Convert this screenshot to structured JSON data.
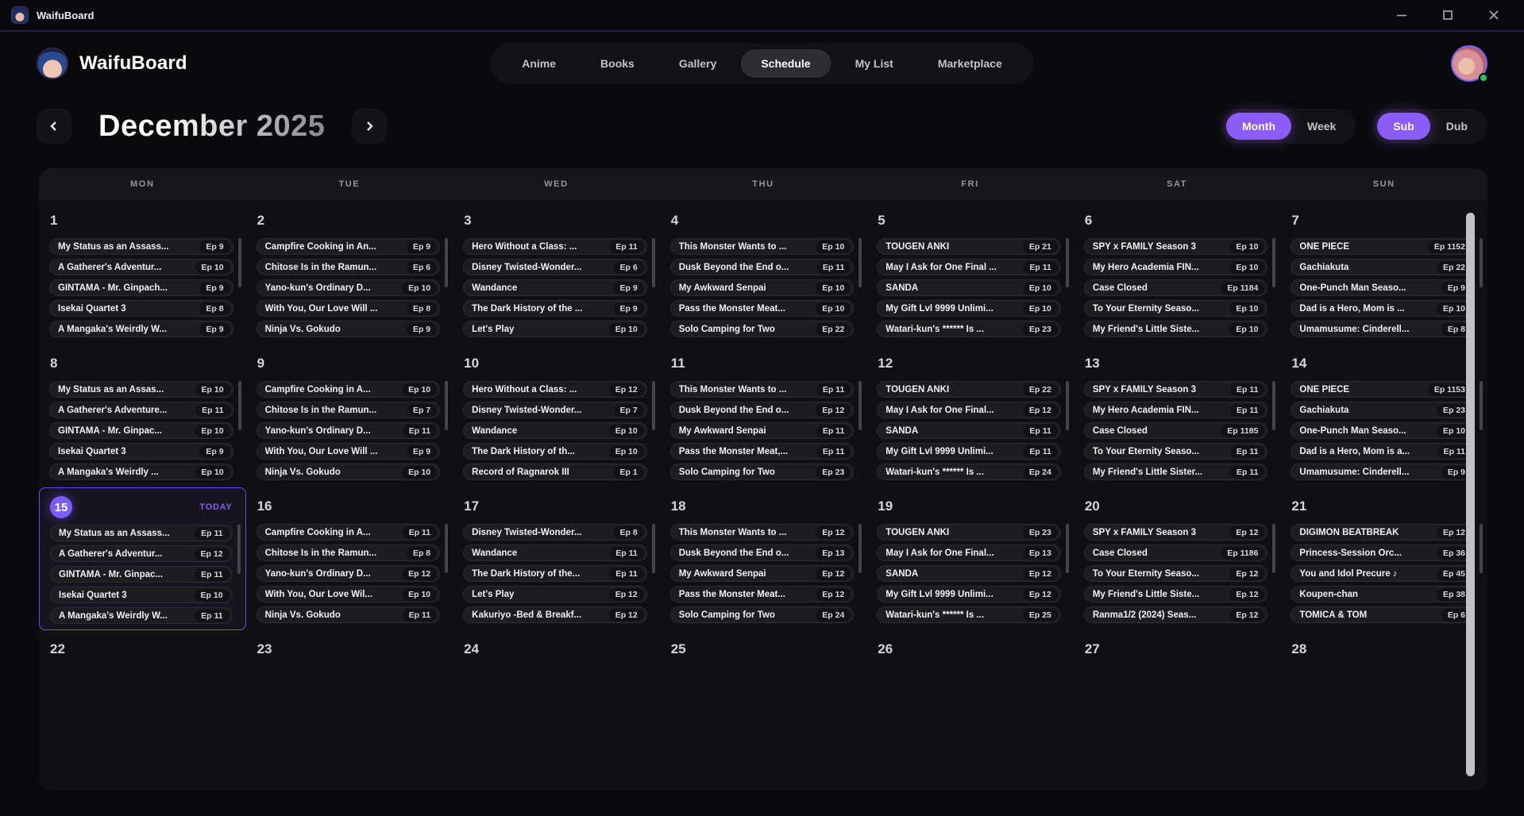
{
  "window": {
    "title": "WaifuBoard",
    "controls": [
      {
        "name": "minimize"
      },
      {
        "name": "maximize"
      },
      {
        "name": "close"
      }
    ]
  },
  "header": {
    "brand": "WaifuBoard",
    "tabs": [
      {
        "label": "Anime",
        "active": false
      },
      {
        "label": "Books",
        "active": false
      },
      {
        "label": "Gallery",
        "active": false
      },
      {
        "label": "Schedule",
        "active": true
      },
      {
        "label": "My List",
        "active": false
      },
      {
        "label": "Marketplace",
        "active": false
      }
    ],
    "avatar_status": "online"
  },
  "toolbar": {
    "month_title": "December 2025",
    "view_toggle": {
      "options": [
        "Month",
        "Week"
      ],
      "active": "Month"
    },
    "audio_toggle": {
      "options": [
        "Sub",
        "Dub"
      ],
      "active": "Sub"
    }
  },
  "colors": {
    "accent": "#8b5cf6",
    "today_badge": "#7c5cfa",
    "status_green": "#22c55e"
  },
  "calendar": {
    "day_headers": [
      "MON",
      "TUE",
      "WED",
      "THU",
      "FRI",
      "SAT",
      "SUN"
    ],
    "today_label": "TODAY",
    "weeks": [
      {
        "days": [
          {
            "date": 1,
            "entries": [
              [
                "My Status as an Assass...",
                "Ep 9"
              ],
              [
                "A Gatherer's Adventur...",
                "Ep 10"
              ],
              [
                "GINTAMA - Mr. Ginpach...",
                "Ep 9"
              ],
              [
                "Isekai Quartet 3",
                "Ep 8"
              ],
              [
                "A Mangaka's Weirdly W...",
                "Ep 9"
              ]
            ]
          },
          {
            "date": 2,
            "entries": [
              [
                "Campfire Cooking in An...",
                "Ep 9"
              ],
              [
                "Chitose Is in the Ramun...",
                "Ep 6"
              ],
              [
                "Yano-kun's Ordinary D...",
                "Ep 10"
              ],
              [
                "With You, Our Love Will ...",
                "Ep 8"
              ],
              [
                "Ninja Vs. Gokudo",
                "Ep 9"
              ]
            ]
          },
          {
            "date": 3,
            "entries": [
              [
                "Hero Without a Class: ...",
                "Ep 11"
              ],
              [
                "Disney Twisted-Wonder...",
                "Ep 6"
              ],
              [
                "Wandance",
                "Ep 9"
              ],
              [
                "The Dark History of the ...",
                "Ep 9"
              ],
              [
                "Let's Play",
                "Ep 10"
              ]
            ]
          },
          {
            "date": 4,
            "entries": [
              [
                "This Monster Wants to ...",
                "Ep 10"
              ],
              [
                "Dusk Beyond the End o...",
                "Ep 11"
              ],
              [
                "My Awkward Senpai",
                "Ep 10"
              ],
              [
                "Pass the Monster Meat...",
                "Ep 10"
              ],
              [
                "Solo Camping for Two",
                "Ep 22"
              ]
            ]
          },
          {
            "date": 5,
            "entries": [
              [
                "TOUGEN ANKI",
                "Ep 21"
              ],
              [
                "May I Ask for One Final ...",
                "Ep 11"
              ],
              [
                "SANDA",
                "Ep 10"
              ],
              [
                "My Gift Lvl 9999 Unlimi...",
                "Ep 10"
              ],
              [
                "Watari-kun's ****** Is ...",
                "Ep 23"
              ]
            ]
          },
          {
            "date": 6,
            "entries": [
              [
                "SPY x FAMILY Season 3",
                "Ep 10"
              ],
              [
                "My Hero Academia FIN...",
                "Ep 10"
              ],
              [
                "Case Closed",
                "Ep 1184"
              ],
              [
                "To Your Eternity Seaso...",
                "Ep 10"
              ],
              [
                "My Friend's Little Siste...",
                "Ep 10"
              ]
            ]
          },
          {
            "date": 7,
            "entries": [
              [
                "ONE PIECE",
                "Ep 1152"
              ],
              [
                "Gachiakuta",
                "Ep 22"
              ],
              [
                "One-Punch Man Seaso...",
                "Ep 9"
              ],
              [
                "Dad is a Hero, Mom is ...",
                "Ep 10"
              ],
              [
                "Umamusume: Cinderell...",
                "Ep 8"
              ]
            ]
          }
        ]
      },
      {
        "days": [
          {
            "date": 8,
            "entries": [
              [
                "My Status as an Assas...",
                "Ep 10"
              ],
              [
                "A Gatherer's Adventure...",
                "Ep 11"
              ],
              [
                "GINTAMA - Mr. Ginpac...",
                "Ep 10"
              ],
              [
                "Isekai Quartet 3",
                "Ep 9"
              ],
              [
                "A Mangaka's Weirdly ...",
                "Ep 10"
              ]
            ]
          },
          {
            "date": 9,
            "entries": [
              [
                "Campfire Cooking in A...",
                "Ep 10"
              ],
              [
                "Chitose Is in the Ramun...",
                "Ep 7"
              ],
              [
                "Yano-kun's Ordinary D...",
                "Ep 11"
              ],
              [
                "With You, Our Love Will ...",
                "Ep 9"
              ],
              [
                "Ninja Vs. Gokudo",
                "Ep 10"
              ]
            ]
          },
          {
            "date": 10,
            "entries": [
              [
                "Hero Without a Class: ...",
                "Ep 12"
              ],
              [
                "Disney Twisted-Wonder...",
                "Ep 7"
              ],
              [
                "Wandance",
                "Ep 10"
              ],
              [
                "The Dark History of th...",
                "Ep 10"
              ],
              [
                "Record of Ragnarok III",
                "Ep 1"
              ]
            ]
          },
          {
            "date": 11,
            "entries": [
              [
                "This Monster Wants to ...",
                "Ep 11"
              ],
              [
                "Dusk Beyond the End o...",
                "Ep 12"
              ],
              [
                "My Awkward Senpai",
                "Ep 11"
              ],
              [
                "Pass the Monster Meat,...",
                "Ep 11"
              ],
              [
                "Solo Camping for Two",
                "Ep 23"
              ]
            ]
          },
          {
            "date": 12,
            "entries": [
              [
                "TOUGEN ANKI",
                "Ep 22"
              ],
              [
                "May I Ask for One Final...",
                "Ep 12"
              ],
              [
                "SANDA",
                "Ep 11"
              ],
              [
                "My Gift Lvl 9999 Unlimi...",
                "Ep 11"
              ],
              [
                "Watari-kun's ****** Is ...",
                "Ep 24"
              ]
            ]
          },
          {
            "date": 13,
            "entries": [
              [
                "SPY x FAMILY Season 3",
                "Ep 11"
              ],
              [
                "My Hero Academia FIN...",
                "Ep 11"
              ],
              [
                "Case Closed",
                "Ep 1185"
              ],
              [
                "To Your Eternity Seaso...",
                "Ep 11"
              ],
              [
                "My Friend's Little Sister...",
                "Ep 11"
              ]
            ]
          },
          {
            "date": 14,
            "entries": [
              [
                "ONE PIECE",
                "Ep 1153"
              ],
              [
                "Gachiakuta",
                "Ep 23"
              ],
              [
                "One-Punch Man Seaso...",
                "Ep 10"
              ],
              [
                "Dad is a Hero, Mom is a...",
                "Ep 11"
              ],
              [
                "Umamusume: Cinderell...",
                "Ep 9"
              ]
            ]
          }
        ]
      },
      {
        "days": [
          {
            "date": 15,
            "today": true,
            "entries": [
              [
                "My Status as an Assass...",
                "Ep 11"
              ],
              [
                "A Gatherer's Adventur...",
                "Ep 12"
              ],
              [
                "GINTAMA - Mr. Ginpac...",
                "Ep 11"
              ],
              [
                "Isekai Quartet 3",
                "Ep 10"
              ],
              [
                "A Mangaka's Weirdly W...",
                "Ep 11"
              ]
            ]
          },
          {
            "date": 16,
            "entries": [
              [
                "Campfire Cooking in A...",
                "Ep 11"
              ],
              [
                "Chitose Is in the Ramun...",
                "Ep 8"
              ],
              [
                "Yano-kun's Ordinary D...",
                "Ep 12"
              ],
              [
                "With You, Our Love Wil...",
                "Ep 10"
              ],
              [
                "Ninja Vs. Gokudo",
                "Ep 11"
              ]
            ]
          },
          {
            "date": 17,
            "entries": [
              [
                "Disney Twisted-Wonder...",
                "Ep 8"
              ],
              [
                "Wandance",
                "Ep 11"
              ],
              [
                "The Dark History of the...",
                "Ep 11"
              ],
              [
                "Let's Play",
                "Ep 12"
              ],
              [
                "Kakuriyo -Bed & Breakf...",
                "Ep 12"
              ]
            ]
          },
          {
            "date": 18,
            "entries": [
              [
                "This Monster Wants to ...",
                "Ep 12"
              ],
              [
                "Dusk Beyond the End o...",
                "Ep 13"
              ],
              [
                "My Awkward Senpai",
                "Ep 12"
              ],
              [
                "Pass the Monster Meat...",
                "Ep 12"
              ],
              [
                "Solo Camping for Two",
                "Ep 24"
              ]
            ]
          },
          {
            "date": 19,
            "entries": [
              [
                "TOUGEN ANKI",
                "Ep 23"
              ],
              [
                "May I Ask for One Final...",
                "Ep 13"
              ],
              [
                "SANDA",
                "Ep 12"
              ],
              [
                "My Gift Lvl 9999 Unlimi...",
                "Ep 12"
              ],
              [
                "Watari-kun's ****** Is ...",
                "Ep 25"
              ]
            ]
          },
          {
            "date": 20,
            "entries": [
              [
                "SPY x FAMILY Season 3",
                "Ep 12"
              ],
              [
                "Case Closed",
                "Ep 1186"
              ],
              [
                "To Your Eternity Seaso...",
                "Ep 12"
              ],
              [
                "My Friend's Little Siste...",
                "Ep 12"
              ],
              [
                "Ranma1/2 (2024) Seas...",
                "Ep 12"
              ]
            ]
          },
          {
            "date": 21,
            "entries": [
              [
                "DIGIMON BEATBREAK",
                "Ep 12"
              ],
              [
                "Princess-Session Orc...",
                "Ep 36"
              ],
              [
                "You and Idol Precure ♪",
                "Ep 45"
              ],
              [
                "Koupen-chan",
                "Ep 38"
              ],
              [
                "TOMICA & TOM",
                "Ep 6"
              ]
            ]
          }
        ]
      },
      {
        "days": [
          {
            "date": 22,
            "entries": []
          },
          {
            "date": 23,
            "entries": []
          },
          {
            "date": 24,
            "entries": []
          },
          {
            "date": 25,
            "entries": []
          },
          {
            "date": 26,
            "entries": []
          },
          {
            "date": 27,
            "entries": []
          },
          {
            "date": 28,
            "entries": []
          }
        ]
      }
    ]
  }
}
